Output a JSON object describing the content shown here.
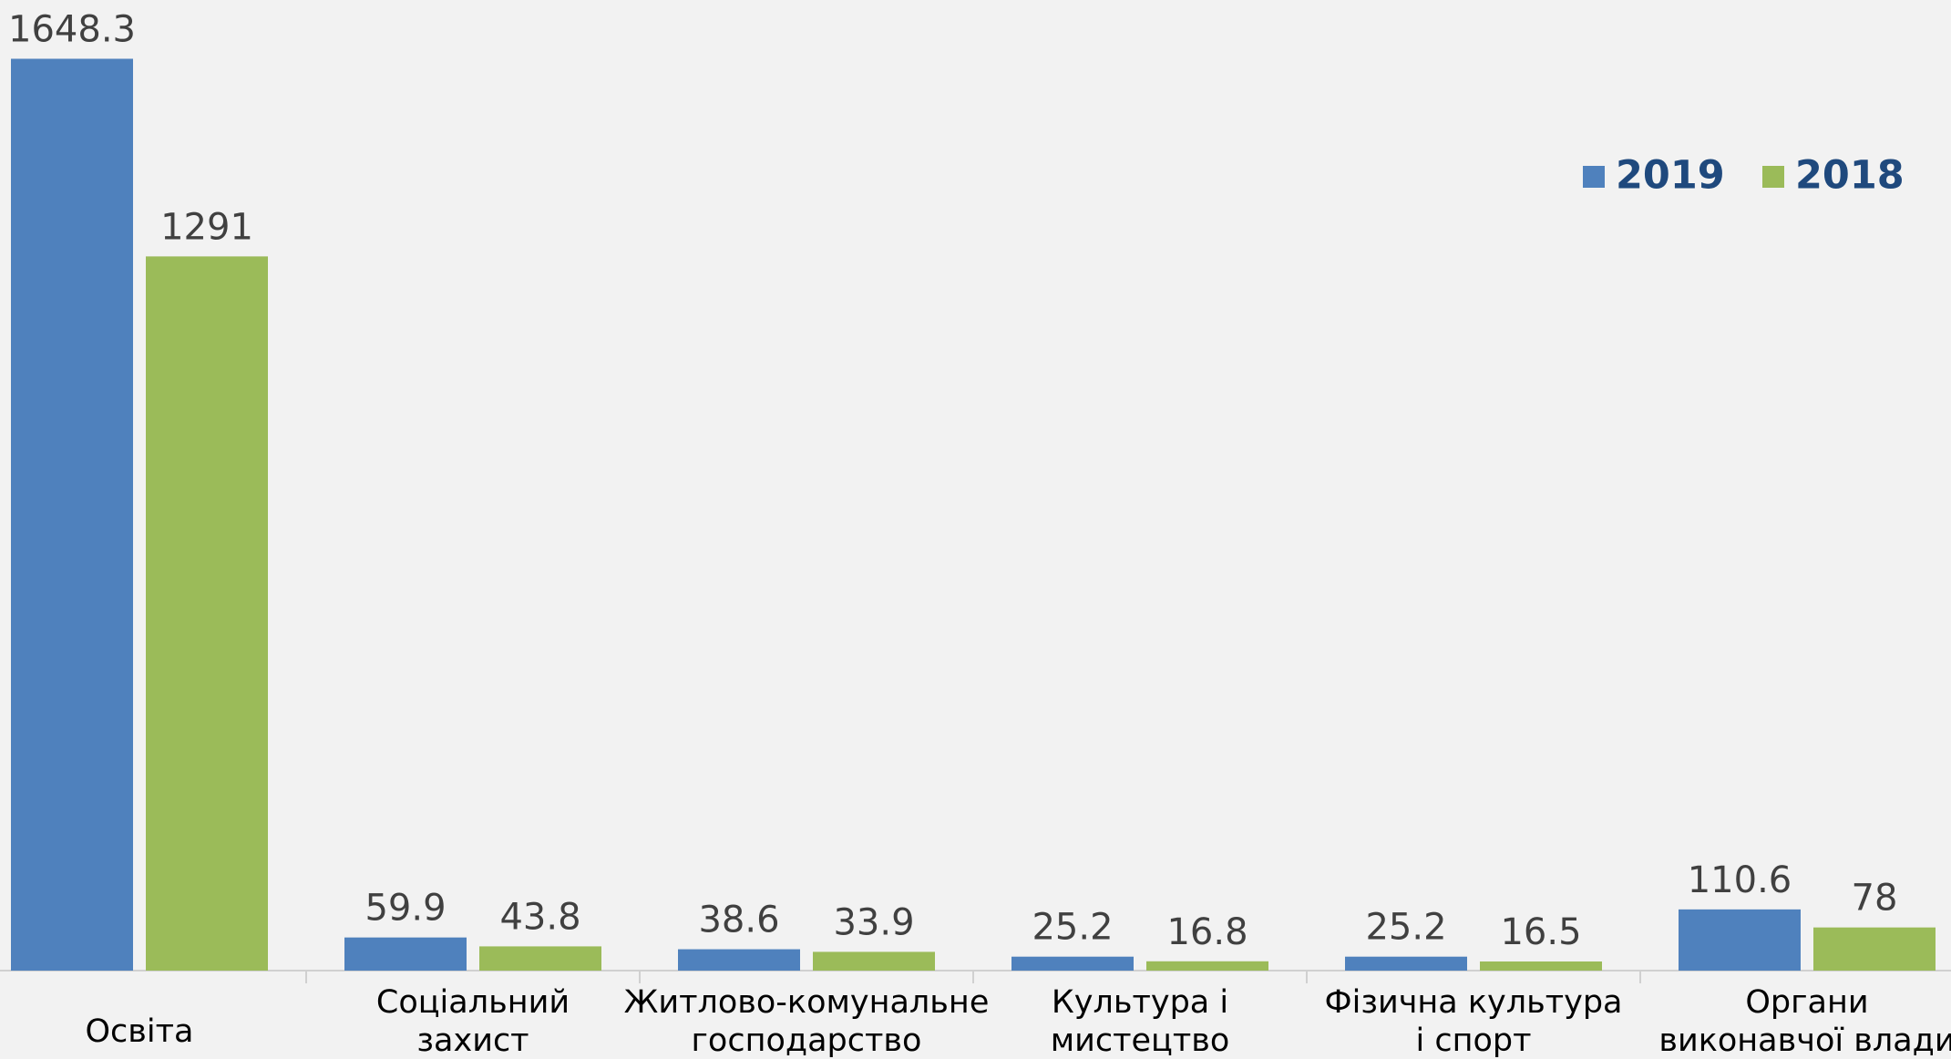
{
  "chart_data": {
    "type": "bar",
    "categories": [
      [
        "Освіта"
      ],
      [
        "Соціальний",
        "захист"
      ],
      [
        "Житлово-комунальне",
        "господарство"
      ],
      [
        "Культура і",
        "мистецтво"
      ],
      [
        "Фізична культура",
        "і спорт"
      ],
      [
        "Органи",
        "виконавчої влади"
      ]
    ],
    "series": [
      {
        "name": "2019",
        "color": "#4f81bd",
        "values": [
          1648.3,
          59.9,
          38.6,
          25.2,
          25.2,
          110.6
        ]
      },
      {
        "name": "2018",
        "color": "#9bbb59",
        "values": [
          1291,
          43.8,
          33.9,
          16.8,
          16.5,
          78
        ]
      }
    ],
    "legend": "upper right"
  }
}
